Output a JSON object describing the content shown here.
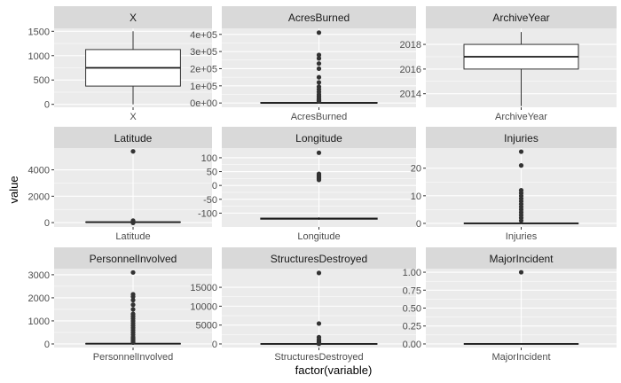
{
  "figure": {
    "xlabel": "factor(variable)",
    "ylabel": "value"
  },
  "chart_data": [
    {
      "type": "boxplot",
      "title": "X",
      "xlabel": "X",
      "ylim": [
        -60,
        1560
      ],
      "yticks": [
        0,
        500,
        1000,
        1500
      ],
      "ytick_labels": [
        "0",
        "500",
        "1000",
        "1500"
      ],
      "box": {
        "min": 0,
        "q1": 375,
        "median": 750,
        "q3": 1125,
        "max": 1500
      },
      "outliers": []
    },
    {
      "type": "boxplot",
      "title": "AcresBurned",
      "xlabel": "AcresBurned",
      "ylim": [
        -25000,
        435000
      ],
      "yticks": [
        0,
        100000,
        200000,
        300000,
        400000
      ],
      "ytick_labels": [
        "0e+00",
        "1e+05",
        "2e+05",
        "3e+05",
        "4e+05"
      ],
      "box": {
        "min": 0,
        "q1": 0,
        "median": 500,
        "q3": 2500,
        "max": 7000
      },
      "outliers": [
        410000,
        280000,
        260000,
        230000,
        200000,
        150000,
        120000,
        95000,
        80000,
        65000,
        50000,
        40000,
        32000,
        25000,
        20000,
        15000,
        12000,
        10000
      ]
    },
    {
      "type": "boxplot",
      "title": "ArchiveYear",
      "xlabel": "ArchiveYear",
      "ylim": [
        2012.9,
        2019.3
      ],
      "yticks": [
        2014,
        2016,
        2018
      ],
      "ytick_labels": [
        "2014",
        "2016",
        "2018"
      ],
      "box": {
        "min": 2013,
        "q1": 2016,
        "median": 2017,
        "q3": 2018,
        "max": 2019
      },
      "outliers": []
    },
    {
      "type": "boxplot",
      "title": "Latitude",
      "xlabel": "Latitude",
      "ylim": [
        -330,
        5650
      ],
      "yticks": [
        0,
        2000,
        4000
      ],
      "ytick_labels": [
        "0",
        "2000",
        "4000"
      ],
      "box": {
        "min": 33,
        "q1": 35,
        "median": 37,
        "q3": 39,
        "max": 42
      },
      "outliers": [
        5400,
        150,
        100,
        0,
        -20
      ]
    },
    {
      "type": "boxplot",
      "title": "Longitude",
      "xlabel": "Longitude",
      "ylim": [
        -150,
        135
      ],
      "yticks": [
        -100,
        -50,
        0,
        50,
        100
      ],
      "ytick_labels": [
        "-100",
        "-50",
        "0",
        "50",
        "100"
      ],
      "box": {
        "min": -124,
        "q1": -122,
        "median": -120,
        "q3": -118,
        "max": -115
      },
      "outliers": [
        118,
        42,
        37,
        32,
        28,
        24,
        20
      ]
    },
    {
      "type": "boxplot",
      "title": "Injuries",
      "xlabel": "Injuries",
      "ylim": [
        -1.3,
        27.3
      ],
      "yticks": [
        0,
        10,
        20
      ],
      "ytick_labels": [
        "0",
        "10",
        "20"
      ],
      "box": {
        "min": 0,
        "q1": 0,
        "median": 0,
        "q3": 0,
        "max": 0
      },
      "outliers": [
        26,
        21,
        12,
        11,
        10,
        9,
        8,
        7,
        6,
        5,
        4,
        3,
        2,
        1
      ]
    },
    {
      "type": "boxplot",
      "title": "PersonnelInvolved",
      "xlabel": "PersonnelInvolved",
      "ylim": [
        -155,
        3265
      ],
      "yticks": [
        0,
        1000,
        2000,
        3000
      ],
      "ytick_labels": [
        "0",
        "1000",
        "2000",
        "3000"
      ],
      "box": {
        "min": 0,
        "q1": 0,
        "median": 10,
        "q3": 20,
        "max": 40
      },
      "outliers": [
        3100,
        2150,
        2050,
        1900,
        1700,
        1500,
        1300,
        1200,
        1100,
        1000,
        900,
        800,
        700,
        600,
        500,
        400,
        300,
        250,
        200,
        150,
        100,
        60
      ]
    },
    {
      "type": "boxplot",
      "title": "StructuresDestroyed",
      "xlabel": "StructuresDestroyed",
      "ylim": [
        -950,
        19950
      ],
      "yticks": [
        0,
        5000,
        10000,
        15000
      ],
      "ytick_labels": [
        "0",
        "5000",
        "10000",
        "15000"
      ],
      "box": {
        "min": 0,
        "q1": 0,
        "median": 0,
        "q3": 0,
        "max": 0
      },
      "outliers": [
        18800,
        5400,
        1800,
        1200,
        800,
        500,
        300,
        150,
        50
      ]
    },
    {
      "type": "boxplot",
      "title": "MajorIncident",
      "xlabel": "MajorIncident",
      "ylim": [
        -0.05,
        1.05
      ],
      "yticks": [
        0,
        0.25,
        0.5,
        0.75,
        1
      ],
      "ytick_labels": [
        "0.00",
        "0.25",
        "0.50",
        "0.75",
        "1.00"
      ],
      "box": {
        "min": 0,
        "q1": 0,
        "median": 0,
        "q3": 0,
        "max": 0
      },
      "outliers": [
        1
      ]
    }
  ]
}
